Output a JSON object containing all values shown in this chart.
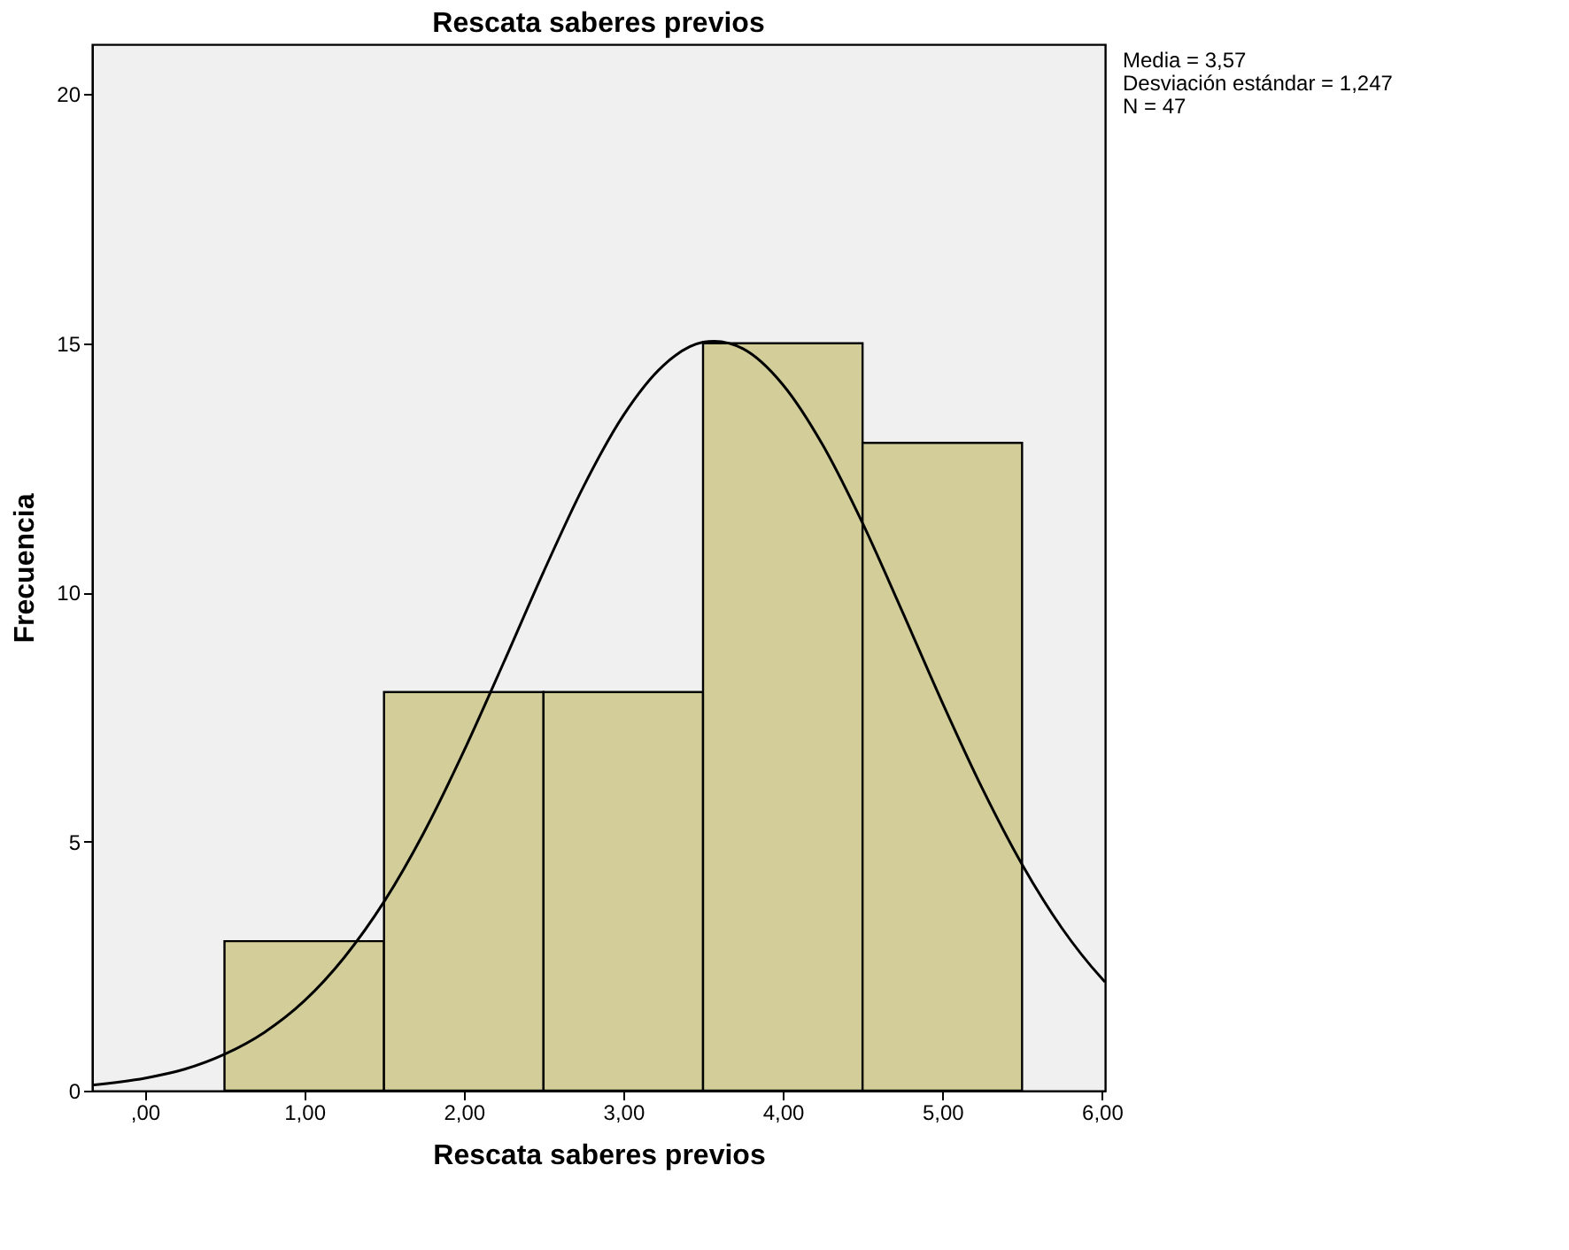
{
  "chart_data": {
    "type": "histogram",
    "title": "Rescata saberes previos",
    "xlabel": "Rescata saberes previos",
    "ylabel": "Frecuencia",
    "bins": [
      0.5,
      1.5,
      2.5,
      3.5,
      4.5,
      5.5
    ],
    "values": [
      3,
      8,
      8,
      15,
      13
    ],
    "color": "#d3ce99",
    "series": [
      {
        "type": "line",
        "color": "#000000",
        "x": [
          -0.33,
          0,
          0.25,
          0.5,
          0.75,
          1.0,
          1.25,
          1.5,
          1.75,
          2.0,
          2.25,
          2.5,
          2.75,
          3.0,
          3.25,
          3.5,
          3.57,
          3.75,
          4.0,
          4.25,
          4.5,
          4.75,
          5.0,
          5.25,
          5.5,
          5.75,
          6.0,
          6.02
        ],
        "values": [
          0.11,
          0.25,
          0.43,
          0.73,
          1.17,
          1.8,
          2.67,
          3.79,
          5.18,
          6.81,
          8.59,
          10.41,
          12.12,
          13.55,
          14.55,
          15.02,
          15.04,
          14.89,
          14.17,
          12.96,
          11.39,
          9.61,
          7.79,
          6.07,
          4.54,
          3.26,
          2.25,
          2.18
        ]
      }
    ],
    "xlim": [
      -0.33,
      6.02
    ],
    "ylim": [
      0,
      21
    ],
    "xticks": [
      {
        "value": 0,
        "label": ",00"
      },
      {
        "value": 1,
        "label": "1,00"
      },
      {
        "value": 2,
        "label": "2,00"
      },
      {
        "value": 3,
        "label": "3,00"
      },
      {
        "value": 4,
        "label": "4,00"
      },
      {
        "value": 5,
        "label": "5,00"
      },
      {
        "value": 6,
        "label": "6,00"
      }
    ],
    "yticks": [
      0,
      5,
      10,
      15,
      20
    ],
    "grid": false,
    "annotations": [
      "Media = 3,57",
      "Desviación estándar = 1,247",
      "N = 47"
    ]
  }
}
